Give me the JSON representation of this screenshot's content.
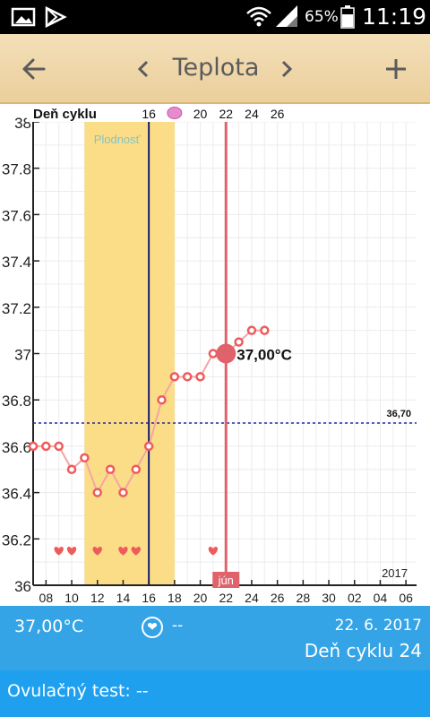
{
  "status_bar": {
    "battery_percent": "65%",
    "time": "11:19",
    "icons": [
      "gallery-icon",
      "play-store-icon",
      "wifi-icon",
      "signal-icon",
      "battery-icon"
    ]
  },
  "toolbar": {
    "back_icon": "arrow-left-icon",
    "prev_icon": "chevron-left-icon",
    "title": "Teplota",
    "next_icon": "chevron-right-icon",
    "add_icon": "plus-icon"
  },
  "chart_data": {
    "type": "line",
    "title": "",
    "xlabel": "",
    "ylabel": "",
    "year_label": "2017",
    "month_label": "jún",
    "top_axis_label": "Deň cyklu",
    "cycle_ticks": [
      "16",
      "20",
      "22",
      "24",
      "26"
    ],
    "cycle_tick_positions": [
      16,
      20,
      22,
      24,
      26
    ],
    "ovulation_marker_day": 18,
    "x_axis_start_day": 7,
    "x_ticks": [
      "08",
      "10",
      "12",
      "14",
      "16",
      "18",
      "20",
      "22",
      "24",
      "26",
      "28",
      "30",
      "02",
      "04",
      "06"
    ],
    "ylim": [
      36,
      38
    ],
    "y_ticks": [
      "36",
      "36.2",
      "36.4",
      "36.6",
      "36.8",
      "37",
      "37.2",
      "37.4",
      "37.6",
      "37.8",
      "38"
    ],
    "fertility_label": "Plodnosť",
    "fertility_range": [
      11,
      18
    ],
    "coverline_value": 36.7,
    "coverline_label": "36,70",
    "ovulation_line_day": 16,
    "selected_day": 22,
    "selected_value": 37.0,
    "selected_label": "37,00°C",
    "points": [
      {
        "x": 7,
        "y": 36.6
      },
      {
        "x": 8,
        "y": 36.6
      },
      {
        "x": 9,
        "y": 36.6
      },
      {
        "x": 10,
        "y": 36.5
      },
      {
        "x": 11,
        "y": 36.55
      },
      {
        "x": 12,
        "y": 36.4
      },
      {
        "x": 13,
        "y": 36.5
      },
      {
        "x": 14,
        "y": 36.4
      },
      {
        "x": 15,
        "y": 36.5
      },
      {
        "x": 16,
        "y": 36.6
      },
      {
        "x": 17,
        "y": 36.8
      },
      {
        "x": 18,
        "y": 36.9
      },
      {
        "x": 19,
        "y": 36.9
      },
      {
        "x": 20,
        "y": 36.9
      },
      {
        "x": 21,
        "y": 37.0
      },
      {
        "x": 22,
        "y": 37.0
      },
      {
        "x": 23,
        "y": 37.05
      },
      {
        "x": 24,
        "y": 37.1
      },
      {
        "x": 25,
        "y": 37.1
      }
    ],
    "heart_days": [
      9,
      10,
      12,
      14,
      15,
      21
    ],
    "heart_value": 36.15,
    "colors": {
      "line": "#f4a5a5",
      "point": "#ef5b5b",
      "fertility": "#fadd86",
      "selected_line": "#e0626b",
      "ovulation_line": "#1c1a6b",
      "coverline": "#1f2d9c",
      "grid": "#ececec"
    }
  },
  "info": {
    "temperature": "37,00°C",
    "dash": "--",
    "date": "22. 6. 2017",
    "cycle_day": "Deň cyklu 24"
  },
  "ovulation_test": {
    "label": "Ovulačný test: --"
  }
}
